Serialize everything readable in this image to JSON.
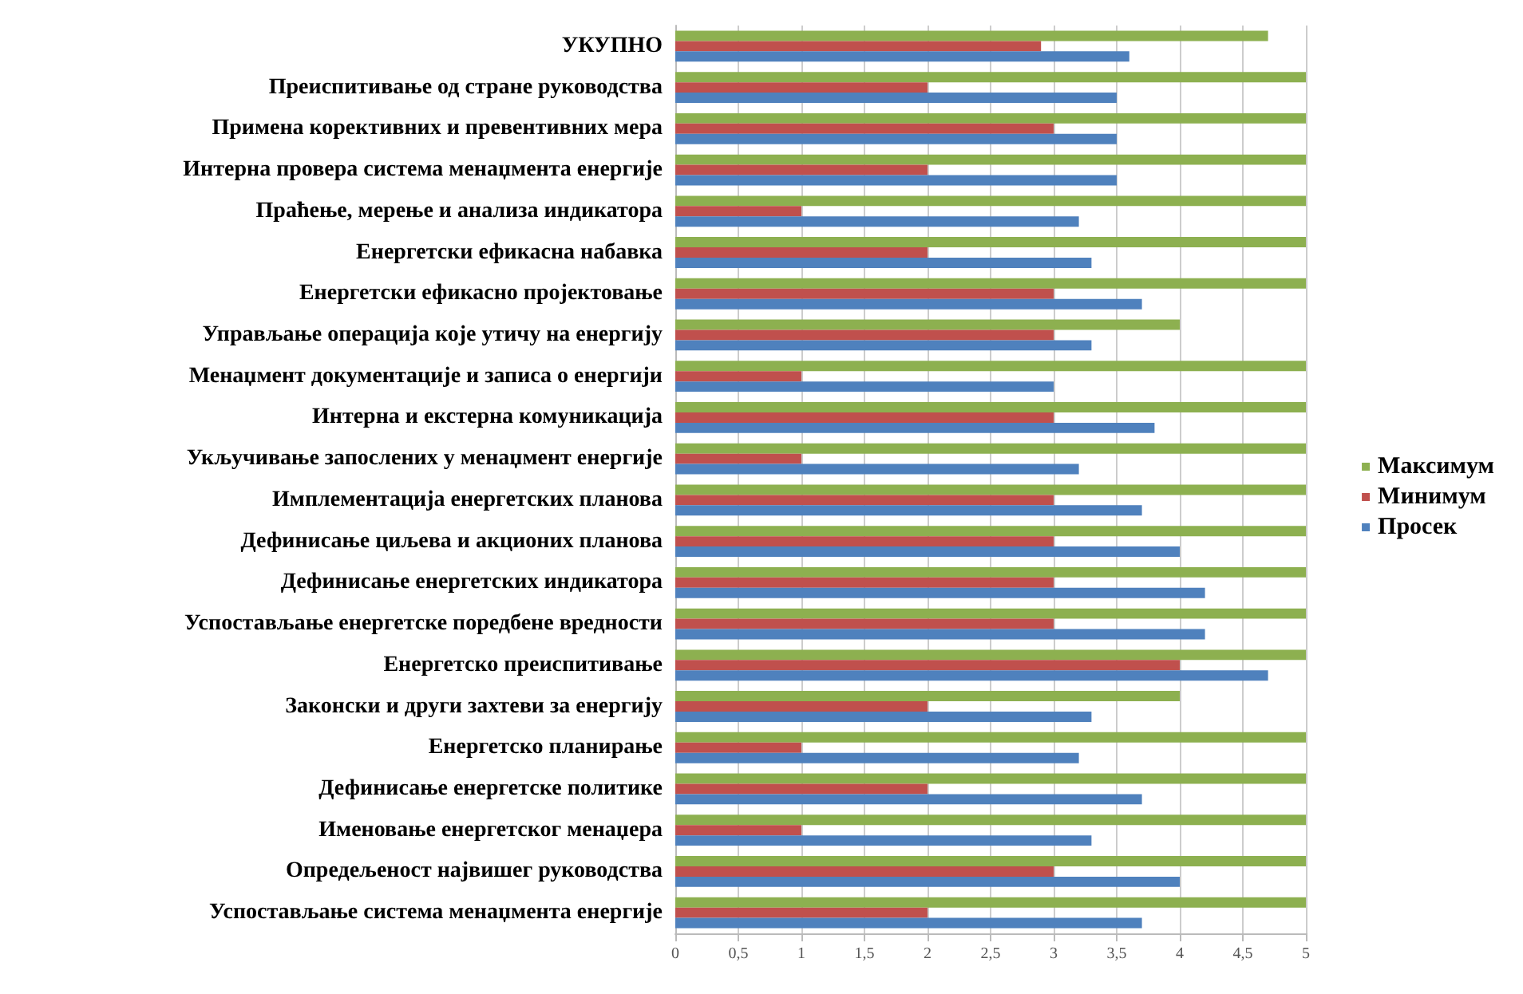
{
  "chart_data": {
    "type": "bar",
    "orientation": "horizontal",
    "categories": [
      "УКУПНО",
      "Преиспитивање од стране руководства",
      "Примена корективних и превентивних мера",
      "Интерна провера система менаџмента енергије",
      "Праћење, мерење и анализа индикатора",
      "Енергетски ефикасна набавка",
      "Енергетски ефикасно пројектовање",
      "Управљање операција које утичу на енергију",
      "Менаџмент документације и записа о енергији",
      "Интерна и екстерна комуникација",
      "Укључивање запослених у менаџмент енергије",
      "Имплементација енергетских планова",
      "Дефинисање циљева и акционих планова",
      "Дефинисање енергетских индикатора",
      "Успостављање енергетске поредбене вредности",
      "Енергетско преиспитивање",
      "Законски и други захтеви за енергију",
      "Енергетско планирање",
      "Дефинисање енергетске политике",
      "Именовање енергетског менаџера",
      "Опредељеност највишег руководства",
      "Успостављање система менаџмента енергије"
    ],
    "series": [
      {
        "name": "Максимум",
        "color": "#8db050",
        "values": [
          4.7,
          5,
          5,
          5,
          5,
          5,
          5,
          4,
          5,
          5,
          5,
          5,
          5,
          5,
          5,
          5,
          4,
          5,
          5,
          5,
          5,
          5
        ]
      },
      {
        "name": "Минимум",
        "color": "#c0504d",
        "values": [
          2.9,
          2,
          3,
          2,
          1,
          2,
          3,
          3,
          1,
          3,
          1,
          3,
          3,
          3,
          3,
          4,
          2,
          1,
          2,
          1,
          3,
          2
        ]
      },
      {
        "name": "Просек",
        "color": "#4f81bd",
        "values": [
          3.6,
          3.5,
          3.5,
          3.5,
          3.2,
          3.3,
          3.7,
          3.3,
          3.0,
          3.8,
          3.2,
          3.7,
          4.0,
          4.2,
          4.2,
          4.7,
          3.3,
          3.2,
          3.7,
          3.3,
          4.0,
          3.7
        ]
      }
    ],
    "xlim": [
      0,
      5
    ],
    "xticks": [
      0,
      {
        "value": 0.5,
        "label": "0,5"
      },
      1,
      {
        "value": 1.5,
        "label": "1,5"
      },
      2,
      {
        "value": 2.5,
        "label": "2,5"
      },
      3,
      {
        "value": 3.5,
        "label": "3,5"
      },
      4,
      {
        "value": 4.5,
        "label": "4,5"
      },
      5
    ],
    "grid": "x",
    "legend": "right"
  }
}
